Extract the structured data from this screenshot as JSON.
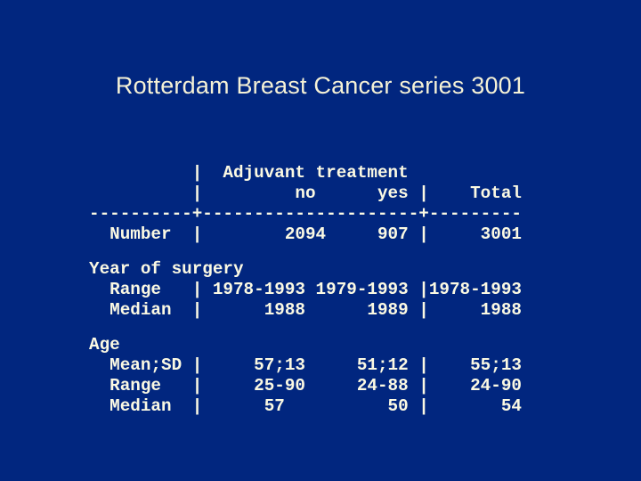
{
  "slide": {
    "title": "Rotterdam Breast Cancer series 3001",
    "background_color": "#01267F",
    "title_color": "#F5F1D6",
    "text_color": "#FBF9E3"
  },
  "table": {
    "column_group": "Adjuvant treatment",
    "columns": [
      "no",
      "yes",
      "Total"
    ],
    "sections": [
      {
        "section": "",
        "rows": [
          {
            "label": "Number",
            "no": "2094",
            "yes": "907",
            "total": "3001"
          }
        ]
      },
      {
        "section": "Year of surgery",
        "rows": [
          {
            "label": "Range",
            "no": "1978-1993",
            "yes": "1979-1993",
            "total": "1978-1993"
          },
          {
            "label": "Median",
            "no": "1988",
            "yes": "1989",
            "total": "1988"
          }
        ]
      },
      {
        "section": "Age",
        "rows": [
          {
            "label": "Mean;SD",
            "no": "57;13",
            "yes": "51;12",
            "total": "55;13"
          },
          {
            "label": "Range",
            "no": "25-90",
            "yes": "24-88",
            "total": "24-90"
          },
          {
            "label": "Median",
            "no": "57",
            "yes": "50",
            "total": "54"
          }
        ]
      }
    ],
    "ascii": {
      "block1": [
        "          |  Adjuvant treatment",
        "          |         no      yes |    Total",
        "----------+---------------------+---------",
        "  Number  |        2094     907 |     3001"
      ],
      "block2": [
        "Year of surgery",
        "  Range   | 1978-1993 1979-1993 |1978-1993",
        "  Median  |      1988      1989 |     1988"
      ],
      "block3": [
        "Age",
        "  Mean;SD |     57;13     51;12 |    55;13",
        "  Range   |     25-90     24-88 |    24-90",
        "  Median  |      57          50 |       54"
      ]
    }
  }
}
